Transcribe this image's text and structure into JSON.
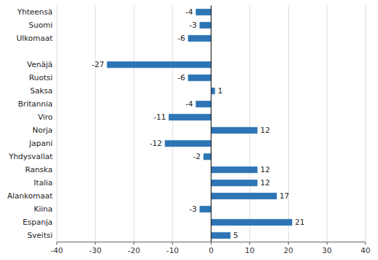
{
  "chart_data": {
    "type": "bar",
    "orientation": "horizontal",
    "categories": [
      "Yhteensä",
      "Suomi",
      "Ulkomaat",
      null,
      "Venäjä",
      "Ruotsi",
      "Saksa",
      "Britannia",
      "Viro",
      "Norja",
      "Japani",
      "Yhdysvallat",
      "Ranska",
      "Italia",
      "Alankomaat",
      "Kiina",
      "Espanja",
      "Sveitsi"
    ],
    "values": [
      -4,
      -3,
      -6,
      null,
      -27,
      -6,
      1,
      -4,
      -11,
      12,
      -12,
      -2,
      12,
      12,
      17,
      -3,
      21,
      5
    ],
    "color": "#2E75B6",
    "xlim": [
      -40,
      40
    ],
    "xticks": [
      -40,
      -30,
      -20,
      -10,
      0,
      10,
      20,
      30,
      40
    ],
    "grid": true,
    "data_labels": true
  }
}
